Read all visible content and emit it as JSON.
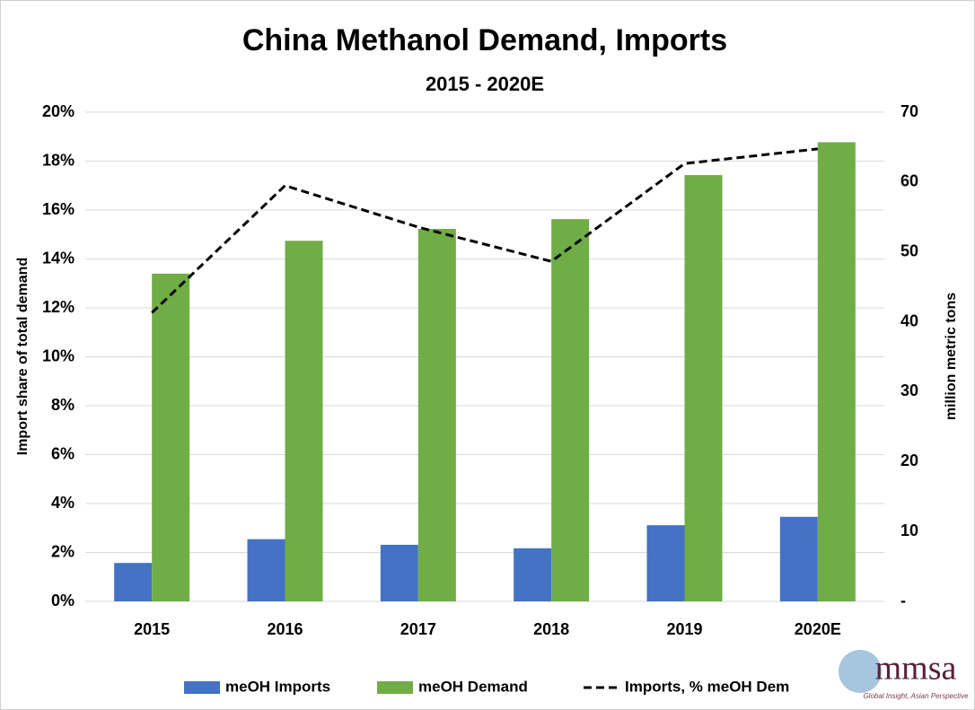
{
  "chart_data": {
    "type": "bar",
    "title": "China Methanol Demand, Imports",
    "subtitle": "2015 - 2020E",
    "ylabel": "Import share of total demand",
    "y2label": "million metric tons",
    "categories": [
      "2015",
      "2016",
      "2017",
      "2018",
      "2019",
      "2020E"
    ],
    "series": [
      {
        "name": "meOH Imports",
        "color": "#4472c4",
        "axis": "y2",
        "values": [
          5.5,
          8.9,
          8.1,
          7.6,
          10.9,
          12.1
        ]
      },
      {
        "name": "meOH Demand",
        "color": "#70ad47",
        "axis": "y2",
        "values": [
          46.9,
          51.6,
          53.3,
          54.7,
          61.0,
          65.7
        ]
      },
      {
        "name": "Imports, % meOH Dem",
        "color": "#000000",
        "type": "line",
        "dashed": true,
        "values": [
          11.8,
          17.0,
          15.3,
          13.9,
          17.9,
          18.5
        ]
      }
    ],
    "ylim": [
      0,
      20
    ],
    "yticks": [
      {
        "value": 0,
        "label": "0%"
      },
      {
        "value": 2,
        "label": "2%"
      },
      {
        "value": 4,
        "label": "4%"
      },
      {
        "value": 6,
        "label": "6%"
      },
      {
        "value": 8,
        "label": "8%"
      },
      {
        "value": 10,
        "label": "10%"
      },
      {
        "value": 12,
        "label": "12%"
      },
      {
        "value": 14,
        "label": "14%"
      },
      {
        "value": 16,
        "label": "16%"
      },
      {
        "value": 18,
        "label": "18%"
      },
      {
        "value": 20,
        "label": "20%"
      }
    ],
    "y2lim": [
      0,
      70
    ],
    "y2ticks": [
      {
        "value": 0,
        "label": "-"
      },
      10,
      20,
      30,
      40,
      50,
      60,
      70
    ],
    "grid": true,
    "legend": "bottom"
  },
  "logo": {
    "name": "mmsa",
    "tagline": "Global Insight, Asian Perspective"
  }
}
